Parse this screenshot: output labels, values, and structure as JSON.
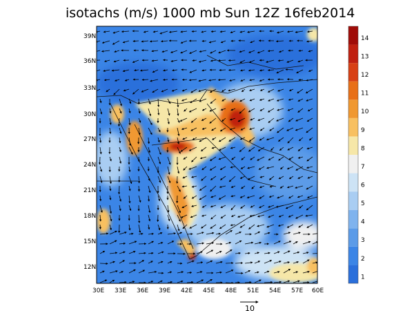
{
  "title": "isotachs (m/s) 1000 mb Sun 12Z 16feb2014",
  "lat_ticks": [
    "39N",
    "36N",
    "33N",
    "30N",
    "27N",
    "24N",
    "21N",
    "18N",
    "15N",
    "12N"
  ],
  "lon_ticks": [
    "30E",
    "33E",
    "36E",
    "39E",
    "42E",
    "45E",
    "48E",
    "51E",
    "54E",
    "57E",
    "60E"
  ],
  "colorbar": {
    "labels": [
      "1",
      "2",
      "3",
      "4",
      "5",
      "6",
      "7",
      "8",
      "9",
      "10",
      "11",
      "12",
      "13",
      "14"
    ],
    "colors": [
      "#2a6fdb",
      "#3b85e6",
      "#5b9be8",
      "#7fb3ee",
      "#a9cdf2",
      "#cde3f5",
      "#f0f0f0",
      "#f6e7a8",
      "#f8c060",
      "#f09830",
      "#e87018",
      "#d84014",
      "#c02010",
      "#a00c08"
    ]
  },
  "reference_vector": {
    "label": "10"
  }
}
